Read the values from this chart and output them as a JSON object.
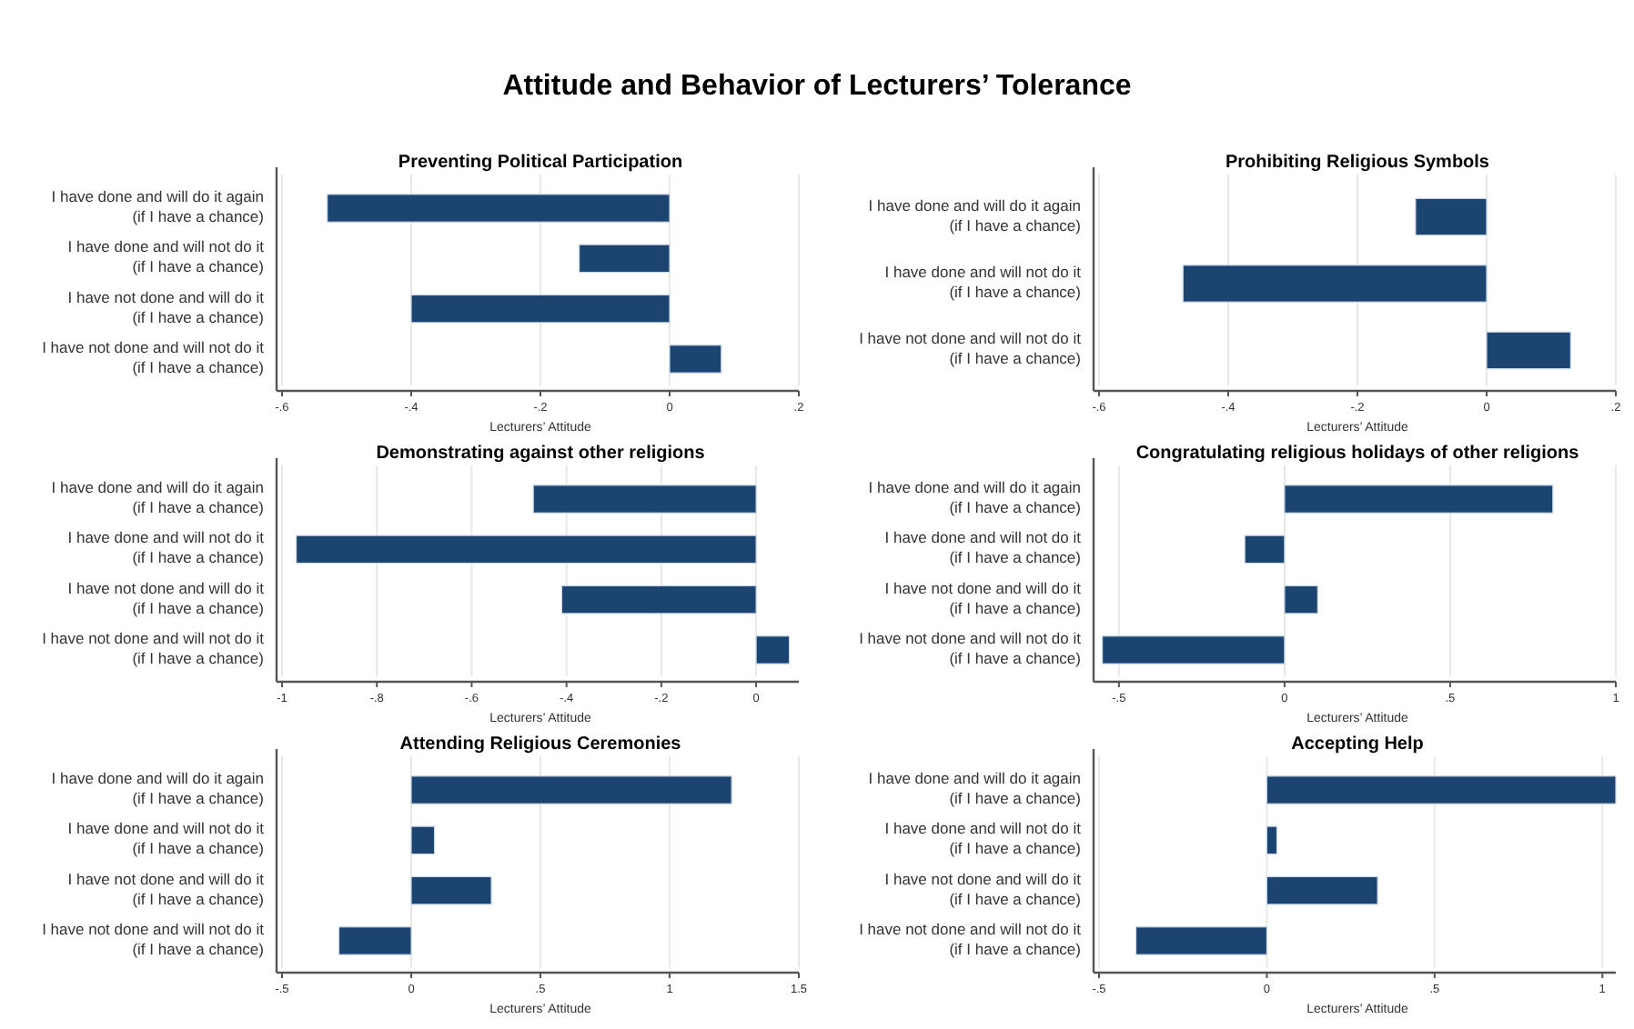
{
  "chart_data": [
    {
      "type": "other",
      "title": "Attitude and Behavior of Lecturers’ Tolerance"
    },
    {
      "type": "bar",
      "orientation": "horizontal",
      "title": "Preventing Political Participation",
      "xlabel": "Lecturers’ Attitude",
      "categories": [
        "I have done and will do it again\n(if I have a chance)",
        "I have done and will not do it\n(if I have a chance)",
        "I have not done and will  do it\n(if I have a chance)",
        "I have not done and will not do it\n(if I have a chance)"
      ],
      "values": [
        -0.53,
        -0.14,
        -0.4,
        0.08
      ],
      "color": "#1b4570",
      "xlim": [
        -0.6,
        0.2
      ],
      "xticks": [
        {
          "value": -0.6,
          "label": "-.6"
        },
        {
          "value": -0.4,
          "label": "-.4"
        },
        {
          "value": -0.2,
          "label": "-.2"
        },
        0,
        {
          "value": 0.2,
          "label": ".2"
        }
      ],
      "grid": "x"
    },
    {
      "type": "bar",
      "orientation": "horizontal",
      "title": "Prohibiting Religious Symbols",
      "xlabel": "Lecturers’ Attitude",
      "categories": [
        "I have done and will do it again\n(if I have a chance)",
        "I have done and will not do it\n(if I have a chance)",
        "I have not done and will not do it\n(if I have a chance)"
      ],
      "values": [
        -0.11,
        -0.47,
        0.13
      ],
      "color": "#1b4570",
      "xlim": [
        -0.6,
        0.2
      ],
      "xticks": [
        {
          "value": -0.6,
          "label": "-.6"
        },
        {
          "value": -0.4,
          "label": "-.4"
        },
        {
          "value": -0.2,
          "label": "-.2"
        },
        0,
        {
          "value": 0.2,
          "label": ".2"
        }
      ],
      "grid": "x"
    },
    {
      "type": "bar",
      "orientation": "horizontal",
      "title": "Demonstrating against other religions",
      "xlabel": "Lecturers’ Attitude",
      "categories": [
        "I have done and will do it again\n(if I have a chance)",
        "I have done and will not do it\n(if I have a chance)",
        "I have not done and will  do it\n(if I have a chance)",
        "I have not done and will not do it\n(if I have a chance)"
      ],
      "values": [
        -0.47,
        -0.97,
        -0.41,
        0.07
      ],
      "color": "#1b4570",
      "xlim": [
        -1,
        0.09
      ],
      "xticks": [
        -1,
        {
          "value": -0.8,
          "label": "-.8"
        },
        {
          "value": -0.6,
          "label": "-.6"
        },
        {
          "value": -0.4,
          "label": "-.4"
        },
        {
          "value": -0.2,
          "label": "-.2"
        },
        0
      ],
      "grid": "x"
    },
    {
      "type": "bar",
      "orientation": "horizontal",
      "title": "Congratulating religious holidays of other religions",
      "xlabel": "Lecturers’ Attitude",
      "categories": [
        "I have done and will do it again\n(if I have a chance)",
        "I have done and will not do it\n(if I have a chance)",
        "I have not done and will  do it\n(if I have a chance)",
        "I have not done and will not do it\n(if I have a chance)"
      ],
      "values": [
        0.81,
        -0.12,
        0.1,
        -0.55
      ],
      "color": "#1b4570",
      "xlim": [
        -0.56,
        1
      ],
      "xticks": [
        {
          "value": -0.5,
          "label": "-.5"
        },
        0,
        {
          "value": 0.5,
          "label": ".5"
        },
        1
      ],
      "grid": "x"
    },
    {
      "type": "bar",
      "orientation": "horizontal",
      "title": "Attending Religious Ceremonies",
      "xlabel": "Lecturers’ Attitude",
      "categories": [
        "I have done and will do it again\n(if I have a chance)",
        "I have done and will not do it\n(if I have a chance)",
        "I have not done and will  do it\n(if I have a chance)",
        "I have not done and will not do it\n(if I have a chance)"
      ],
      "values": [
        1.24,
        0.09,
        0.31,
        -0.28
      ],
      "color": "#1b4570",
      "xlim": [
        -0.5,
        1.5
      ],
      "xticks": [
        {
          "value": -0.5,
          "label": "-.5"
        },
        0,
        {
          "value": 0.5,
          "label": ".5"
        },
        1,
        {
          "value": 1.5,
          "label": "1.5"
        }
      ],
      "grid": "x"
    },
    {
      "type": "bar",
      "orientation": "horizontal",
      "title": "Accepting Help",
      "xlabel": "Lecturers’ Attitude",
      "categories": [
        "I have done and will do it again\n(if I have a chance)",
        "I have done and will not do it\n(if I have a chance)",
        "I have not done and will  do it\n(if I have a chance)",
        "I have not done and will not do it\n(if I have a chance)"
      ],
      "values": [
        1.04,
        0.03,
        0.33,
        -0.39
      ],
      "color": "#1b4570",
      "xlim": [
        -0.5,
        1.04
      ],
      "xticks": [
        {
          "value": -0.5,
          "label": "-.5"
        },
        0,
        {
          "value": 0.5,
          "label": ".5"
        },
        1
      ],
      "grid": "x"
    }
  ]
}
